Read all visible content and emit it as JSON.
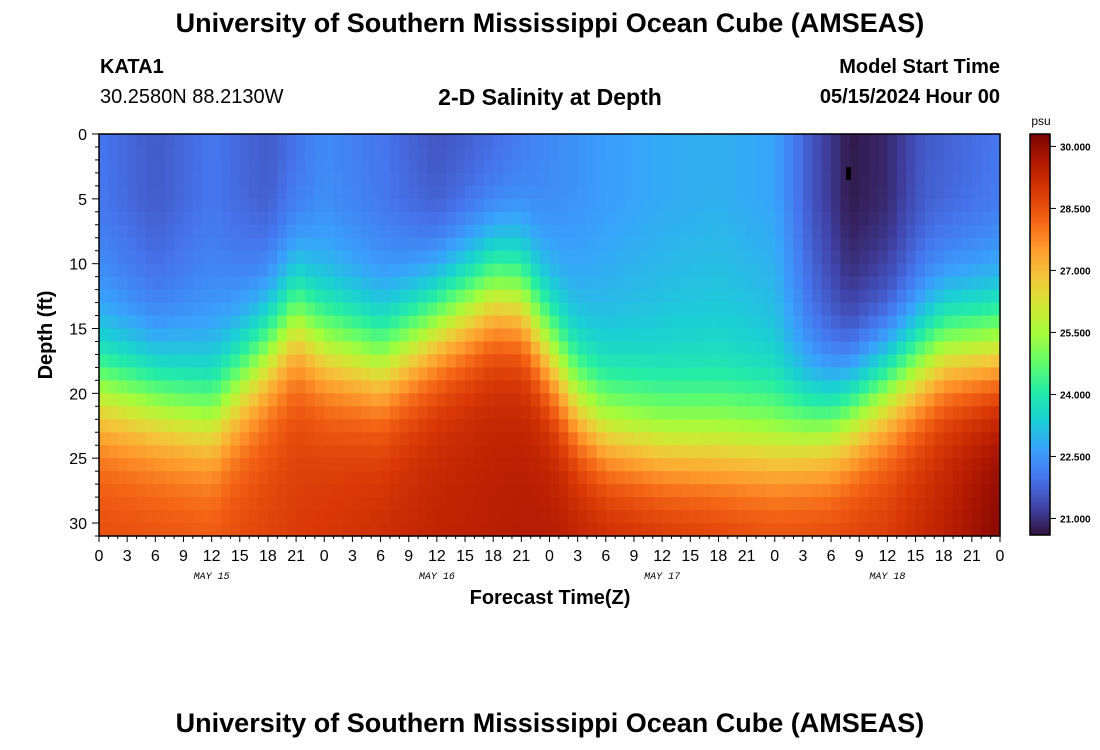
{
  "header": {
    "title_top": "University of Southern Mississippi Ocean Cube (AMSEAS)",
    "title_bottom": "University of Southern Mississippi Ocean Cube (AMSEAS)",
    "station": "KATA1",
    "coords": "30.2580N  88.2130W",
    "subtitle": "2-D Salinity at Depth",
    "model_start_label": "Model Start Time",
    "model_start_value": "05/15/2024 Hour 00"
  },
  "colors": {
    "ramp": [
      "#30123b",
      "#4145ab",
      "#4675ed",
      "#39a2fc",
      "#1bcfd4",
      "#24eca6",
      "#61fc6c",
      "#a4fc3b",
      "#d1e834",
      "#f3c63a",
      "#fe9b2d",
      "#f36315",
      "#d93806",
      "#b11901",
      "#7a0403"
    ]
  },
  "chart_data": {
    "type": "heatmap",
    "title": "2-D Salinity at Depth",
    "xlabel": "Forecast Time(Z)",
    "ylabel": "Depth (ft)",
    "colorbar_units": "psu",
    "x_range_hours": [
      0,
      96
    ],
    "ylim": [
      0,
      31
    ],
    "x_ticks": [
      "0",
      "3",
      "6",
      "9",
      "12",
      "15",
      "18",
      "21",
      "0",
      "3",
      "6",
      "9",
      "12",
      "15",
      "18",
      "21",
      "0",
      "3",
      "6",
      "9",
      "12",
      "15",
      "18",
      "21",
      "0",
      "3",
      "6",
      "9",
      "12",
      "15",
      "18",
      "21",
      "0"
    ],
    "y_ticks": [
      0,
      5,
      10,
      15,
      20,
      25,
      30
    ],
    "y_tick_labels": [
      "0",
      "5",
      "10",
      "15",
      "20",
      "25",
      "30"
    ],
    "date_labels": [
      {
        "hour": 12,
        "text": "MAY 15"
      },
      {
        "hour": 36,
        "text": "MAY 16"
      },
      {
        "hour": 60,
        "text": "MAY 17"
      },
      {
        "hour": 84,
        "text": "MAY 18"
      }
    ],
    "colorbar_min": 20.6,
    "colorbar_max": 30.3,
    "colorbar_ticks": [
      {
        "value": 30.0,
        "label": "30.000"
      },
      {
        "value": 28.5,
        "label": "28.500"
      },
      {
        "value": 27.0,
        "label": "27.000"
      },
      {
        "value": 25.5,
        "label": "25.500"
      },
      {
        "value": 24.0,
        "label": "24.000"
      },
      {
        "value": 22.5,
        "label": "22.500"
      },
      {
        "value": 21.0,
        "label": "21.000"
      }
    ],
    "halocline_depth_ft": {
      "hours": [
        0,
        6,
        12,
        18,
        21,
        24,
        30,
        36,
        42,
        45,
        48,
        51,
        54,
        60,
        66,
        72,
        78,
        84,
        90,
        96
      ],
      "depth": [
        19,
        20,
        21,
        16,
        13.5,
        15.5,
        17,
        14,
        11.5,
        12,
        16,
        20,
        22,
        23,
        23,
        23,
        22,
        19,
        16,
        16
      ]
    },
    "surface_salinity_psu": {
      "hours": [
        0,
        6,
        12,
        18,
        24,
        30,
        36,
        42,
        48,
        54,
        60,
        66,
        72,
        76,
        80,
        84,
        88,
        92,
        96
      ],
      "values": [
        22.0,
        21.6,
        22.0,
        21.6,
        22.3,
        22.0,
        21.5,
        21.8,
        22.3,
        22.6,
        22.8,
        22.9,
        22.7,
        21.5,
        20.7,
        20.9,
        21.6,
        21.8,
        22.0
      ]
    },
    "bottom_salinity_psu": {
      "hours": [
        0,
        12,
        24,
        36,
        48,
        60,
        72,
        84,
        90,
        96
      ],
      "values": [
        28.7,
        28.6,
        29.0,
        29.4,
        29.6,
        29.3,
        28.9,
        29.0,
        29.5,
        30.2
      ]
    }
  }
}
